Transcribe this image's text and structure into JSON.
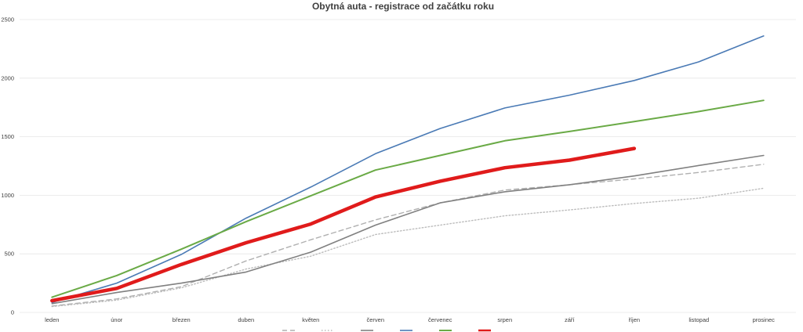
{
  "chart_data": {
    "type": "line",
    "title": "Obytná auta - registrace od začátku roku",
    "xlabel": "",
    "ylabel": "",
    "categories": [
      "leden",
      "únor",
      "březen",
      "duben",
      "květen",
      "červen",
      "červenec",
      "srpen",
      "září",
      "říjen",
      "listopad",
      "prosinec"
    ],
    "ylim": [
      0,
      2500
    ],
    "yticks": [
      0,
      500,
      1000,
      1500,
      2000,
      2500
    ],
    "grid": true,
    "legend_position": "bottom",
    "series": [
      {
        "values": [
          55,
          115,
          220,
          440,
          620,
          790,
          935,
          1045,
          1090,
          1140,
          1195,
          1265
        ],
        "color": "#b0b0b0",
        "style": "dashed",
        "width": 1.4
      },
      {
        "values": [
          50,
          105,
          210,
          370,
          480,
          665,
          745,
          825,
          875,
          930,
          975,
          1060
        ],
        "color": "#bcbcbc",
        "style": "dotted",
        "width": 1.4
      },
      {
        "values": [
          75,
          170,
          250,
          345,
          515,
          745,
          935,
          1030,
          1090,
          1165,
          1255,
          1340
        ],
        "color": "#808080",
        "style": "solid",
        "width": 1.6
      },
      {
        "values": [
          85,
          250,
          495,
          805,
          1070,
          1355,
          1570,
          1745,
          1855,
          1980,
          2140,
          2360
        ],
        "color": "#4a7ab5",
        "style": "solid",
        "width": 1.6
      },
      {
        "values": [
          130,
          315,
          540,
          775,
          995,
          1215,
          1340,
          1465,
          1545,
          1630,
          1715,
          1810
        ],
        "color": "#6aaa46",
        "style": "solid",
        "width": 2
      },
      {
        "values": [
          100,
          205,
          410,
          595,
          755,
          985,
          1120,
          1235,
          1300,
          1400,
          null,
          null
        ],
        "color": "#e01b1b",
        "style": "solid",
        "width": 4.5
      }
    ]
  }
}
